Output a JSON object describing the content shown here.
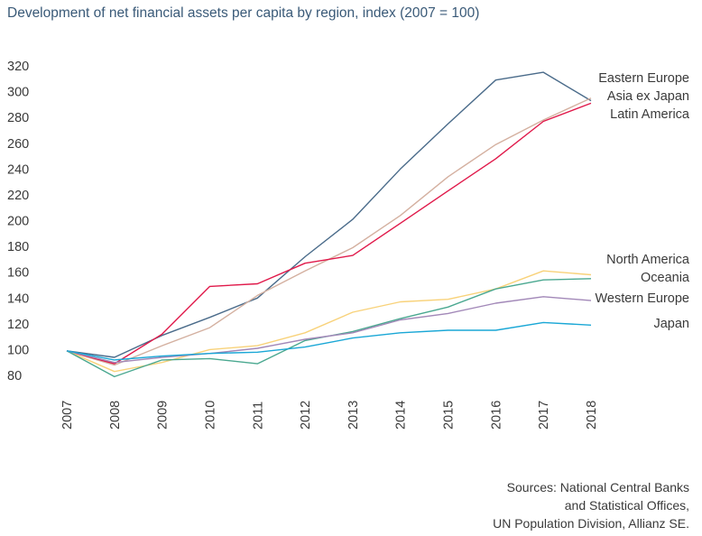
{
  "chart_data": {
    "type": "line",
    "title": "Development of net financial assets per capita by region, index (2007 = 100)",
    "xlabel": "",
    "ylabel": "",
    "x": [
      "2007",
      "2008",
      "2009",
      "2010",
      "2011",
      "2012",
      "2013",
      "2014",
      "2015",
      "2016",
      "2017",
      "2018"
    ],
    "yticks": [
      80,
      100,
      120,
      140,
      160,
      180,
      200,
      220,
      240,
      260,
      280,
      300,
      320
    ],
    "ylim": [
      78,
      322
    ],
    "grid": false,
    "legend": "direct labels at right end of lines",
    "series": [
      {
        "name": "Eastern Europe",
        "color": "#4a6b8a",
        "values": [
          99,
          94,
          111,
          125,
          140,
          172,
          201,
          240,
          275,
          309,
          315,
          293
        ]
      },
      {
        "name": "Asia ex Japan",
        "color": "#d4b0a0",
        "values": [
          99,
          88,
          103,
          117,
          142,
          161,
          179,
          204,
          234,
          259,
          278,
          295
        ]
      },
      {
        "name": "Latin America",
        "color": "#e0194a",
        "values": [
          99,
          89,
          112,
          149,
          151,
          167,
          173,
          198,
          223,
          248,
          277,
          291
        ]
      },
      {
        "name": "North America",
        "color": "#f8d27a",
        "values": [
          99,
          83,
          90,
          100,
          103,
          113,
          129,
          137,
          139,
          147,
          161,
          158
        ]
      },
      {
        "name": "Oceania",
        "color": "#4aa890",
        "values": [
          99,
          79,
          92,
          93,
          89,
          107,
          114,
          124,
          133,
          147,
          154,
          155
        ]
      },
      {
        "name": "Western Europe",
        "color": "#a288b8",
        "values": [
          99,
          90,
          94,
          97,
          101,
          108,
          113,
          123,
          128,
          136,
          141,
          138
        ]
      },
      {
        "name": "Japan",
        "color": "#1aa7d6",
        "values": [
          99,
          92,
          95,
          97,
          98,
          102,
          109,
          113,
          115,
          115,
          121,
          119
        ]
      }
    ],
    "source_lines": [
      "Sources: National Central Banks",
      "and Statistical Offices,",
      "UN Population Division, Allianz SE."
    ]
  }
}
